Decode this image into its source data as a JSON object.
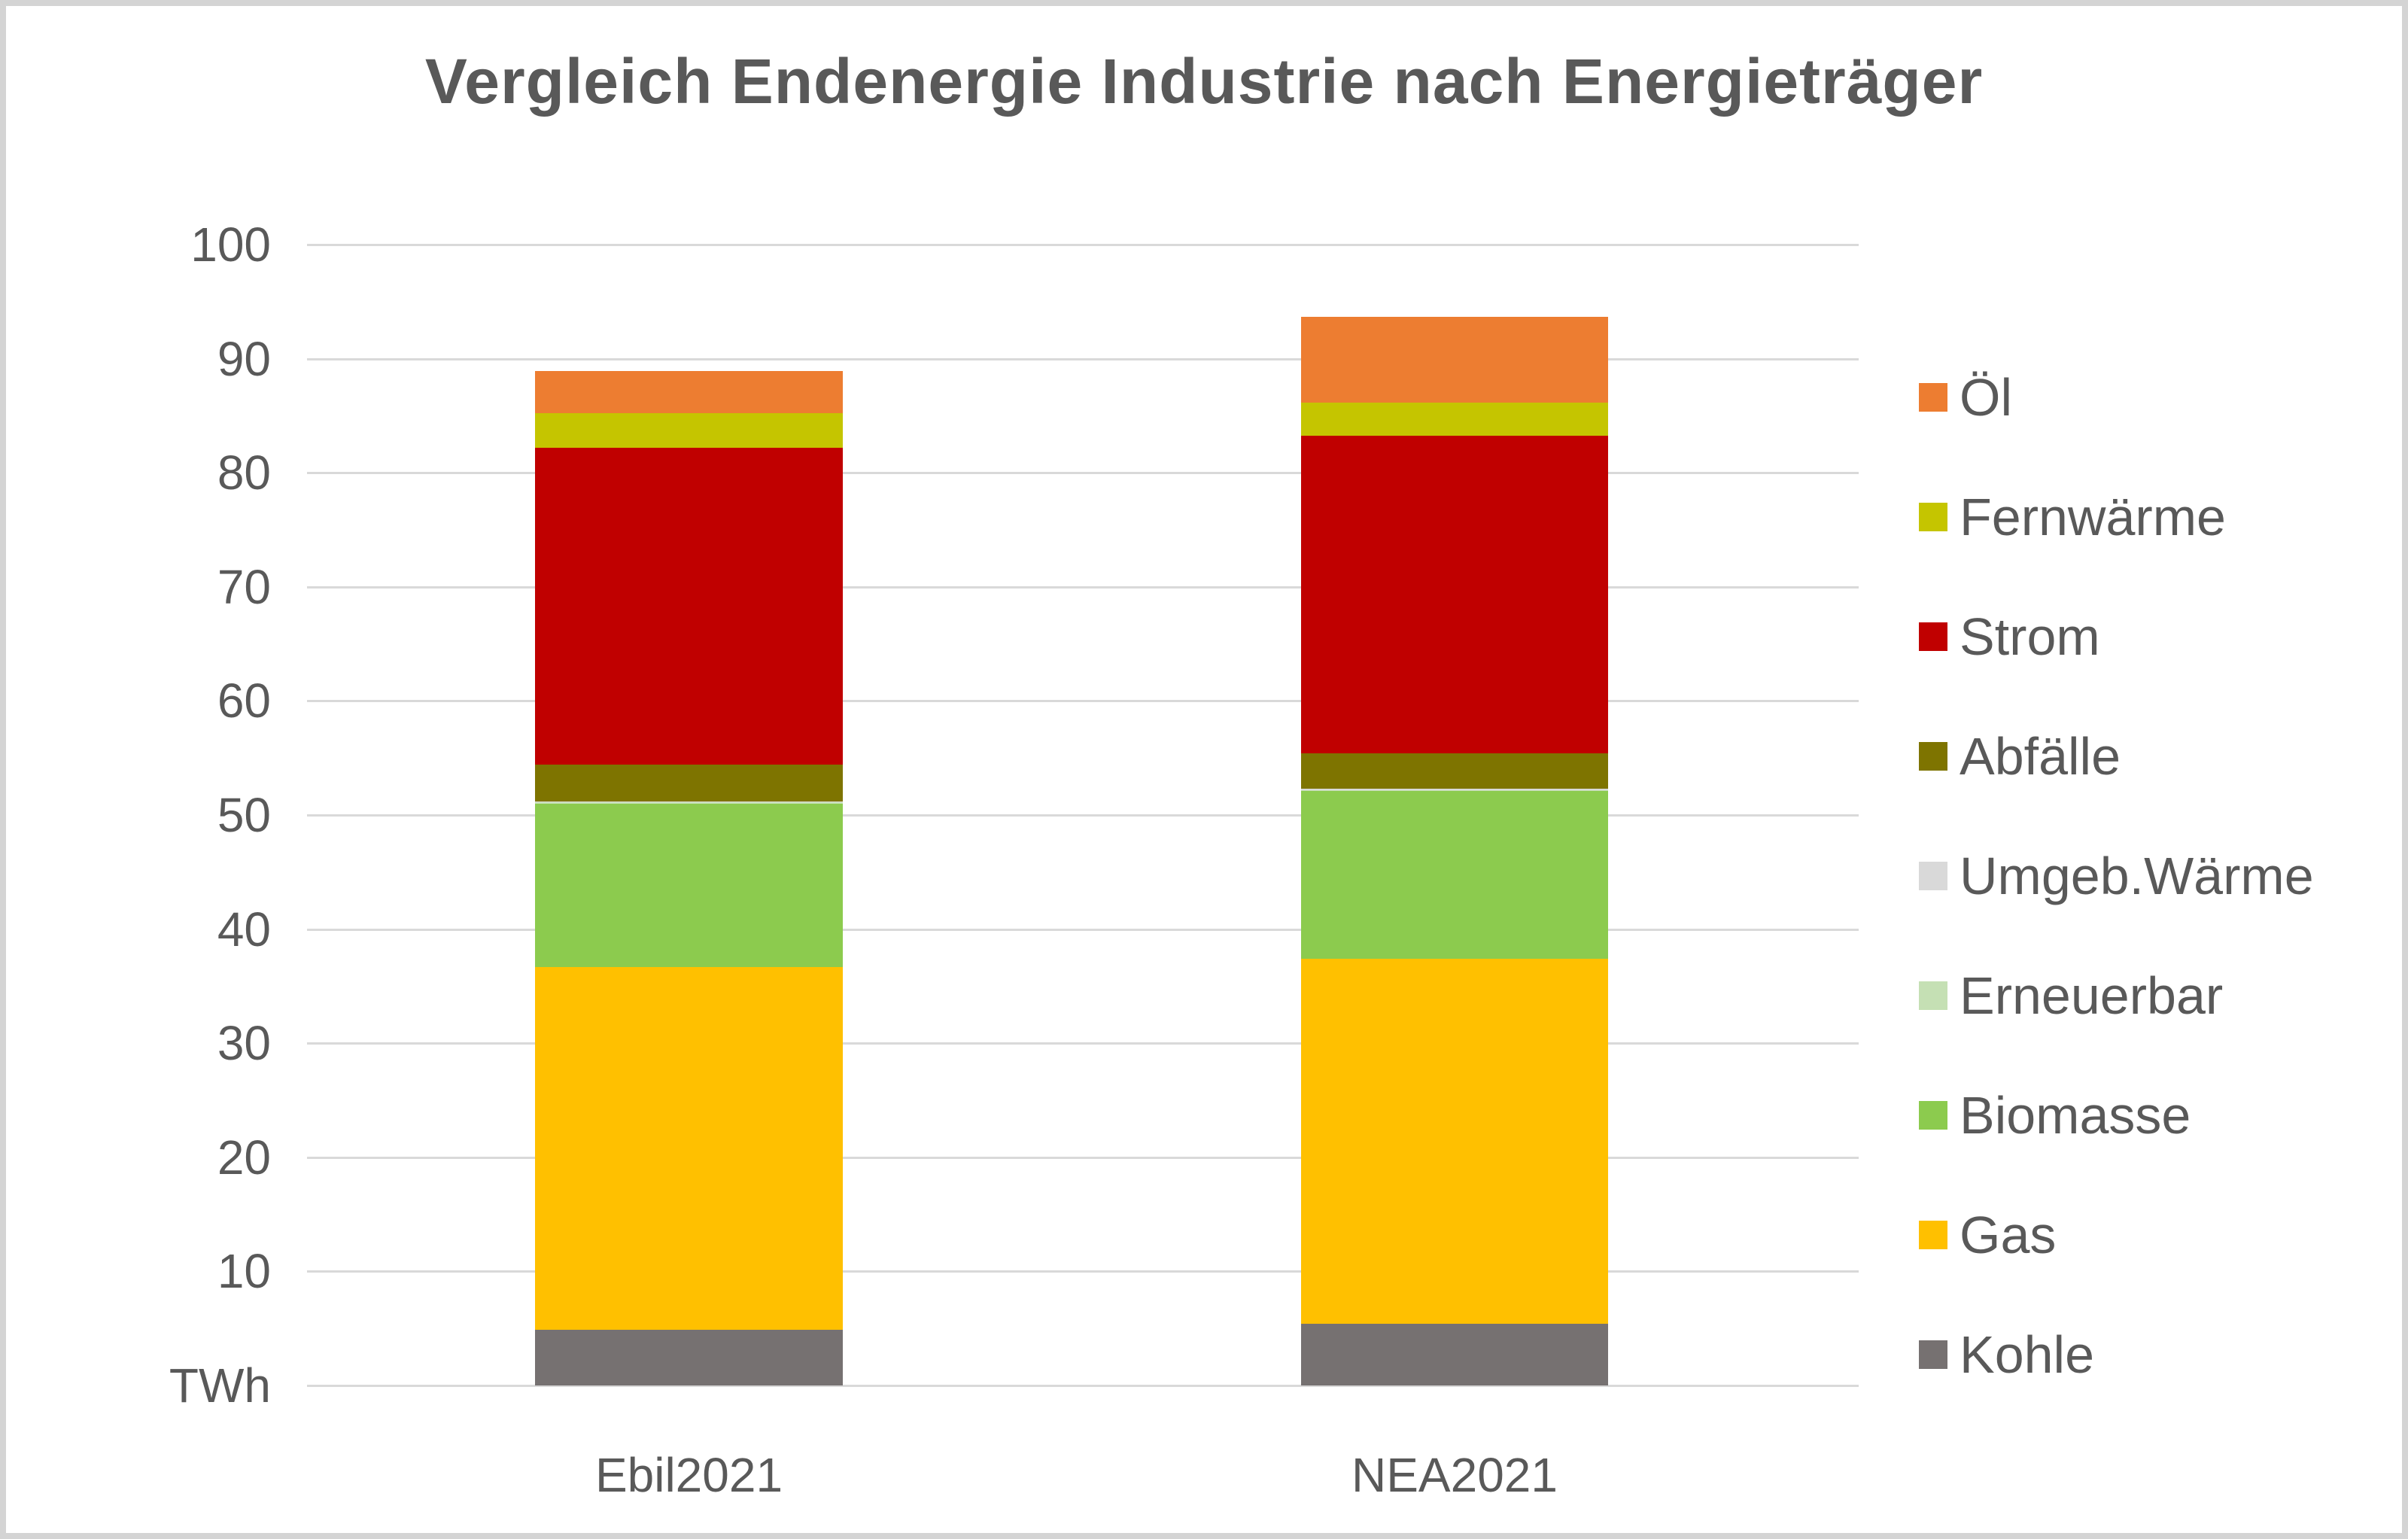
{
  "title": "Vergleich Endenergie Industrie nach Energieträger",
  "y_axis": {
    "unit_label": "TWh",
    "ticks": [
      {
        "value": 100,
        "label": "100"
      },
      {
        "value": 90,
        "label": "90"
      },
      {
        "value": 80,
        "label": "80"
      },
      {
        "value": 70,
        "label": "70"
      },
      {
        "value": 60,
        "label": "60"
      },
      {
        "value": 50,
        "label": "50"
      },
      {
        "value": 40,
        "label": "40"
      },
      {
        "value": 30,
        "label": "30"
      },
      {
        "value": 20,
        "label": "20"
      },
      {
        "value": 10,
        "label": "10"
      },
      {
        "value": 0,
        "label": "TWh"
      }
    ]
  },
  "chart_data": {
    "type": "bar",
    "stacked": true,
    "title": "Vergleich Endenergie Industrie nach Energieträger",
    "categories": [
      "Ebil2021",
      "NEA2021"
    ],
    "series": [
      {
        "name": "Kohle",
        "color": "#767171",
        "values": [
          4.9,
          5.4
        ]
      },
      {
        "name": "Gas",
        "color": "#FFC000",
        "values": [
          31.8,
          32.0
        ]
      },
      {
        "name": "Biomasse",
        "color": "#8CCB4E",
        "values": [
          14.3,
          14.7
        ]
      },
      {
        "name": "Erneuerbar",
        "color": "#C5E0B4",
        "values": [
          0.1,
          0.1
        ]
      },
      {
        "name": "Umgeb.Wärme",
        "color": "#D9D9D9",
        "values": [
          0.1,
          0.1
        ]
      },
      {
        "name": "Abfälle",
        "color": "#7E7400",
        "values": [
          3.2,
          3.1
        ]
      },
      {
        "name": "Strom",
        "color": "#C00000",
        "values": [
          27.8,
          27.9
        ]
      },
      {
        "name": "Fernwärme",
        "color": "#C5C500",
        "values": [
          3.0,
          2.9
        ]
      },
      {
        "name": "Öl",
        "color": "#ED7D31",
        "values": [
          3.7,
          7.5
        ]
      }
    ],
    "totals": [
      88.9,
      93.7
    ],
    "legend_order_top_to_bottom": [
      "Öl",
      "Fernwärme",
      "Strom",
      "Abfälle",
      "Umgeb.Wärme",
      "Erneuerbar",
      "Biomasse",
      "Gas",
      "Kohle"
    ],
    "xlabel": "",
    "ylabel": "TWh",
    "ylim": [
      0,
      100
    ],
    "grid": true,
    "legend_position": "right"
  },
  "style": {
    "text_color": "#595959",
    "gridline_color": "#d9d9d9",
    "background": "#ffffff",
    "frame_border_color": "#d4d4d4"
  }
}
